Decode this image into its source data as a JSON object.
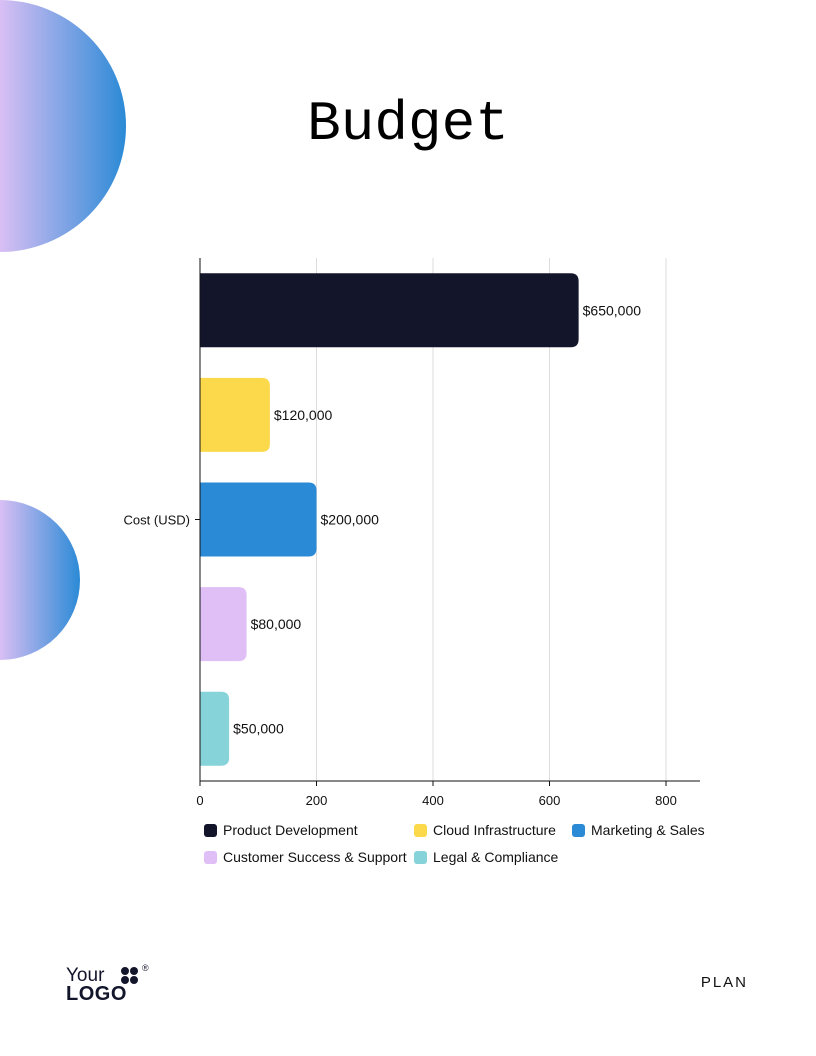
{
  "page": {
    "title": "Budget",
    "footer_label": "PLAN"
  },
  "logo": {
    "line1": "Your",
    "line2": "LOGO",
    "registered": "®"
  },
  "chart_data": {
    "type": "bar",
    "orientation": "horizontal",
    "title": "Budget",
    "ylabel": "Cost (USD)",
    "xlabel": "",
    "xlim": [
      0,
      860
    ],
    "xticks": [
      0,
      200,
      400,
      600,
      800
    ],
    "grid": true,
    "legend_position": "bottom",
    "series": [
      {
        "name": "Product Development",
        "value": 650,
        "label": "$650,000",
        "color": "#13152b"
      },
      {
        "name": "Cloud Infrastructure",
        "value": 120,
        "label": "$120,000",
        "color": "#fcd94a"
      },
      {
        "name": "Marketing & Sales",
        "value": 200,
        "label": "$200,000",
        "color": "#2b8ad6"
      },
      {
        "name": "Customer Success & Support",
        "value": 80,
        "label": "$80,000",
        "color": "#dfbff5"
      },
      {
        "name": "Legal & Compliance",
        "value": 50,
        "label": "$50,000",
        "color": "#86d4d9"
      }
    ]
  }
}
